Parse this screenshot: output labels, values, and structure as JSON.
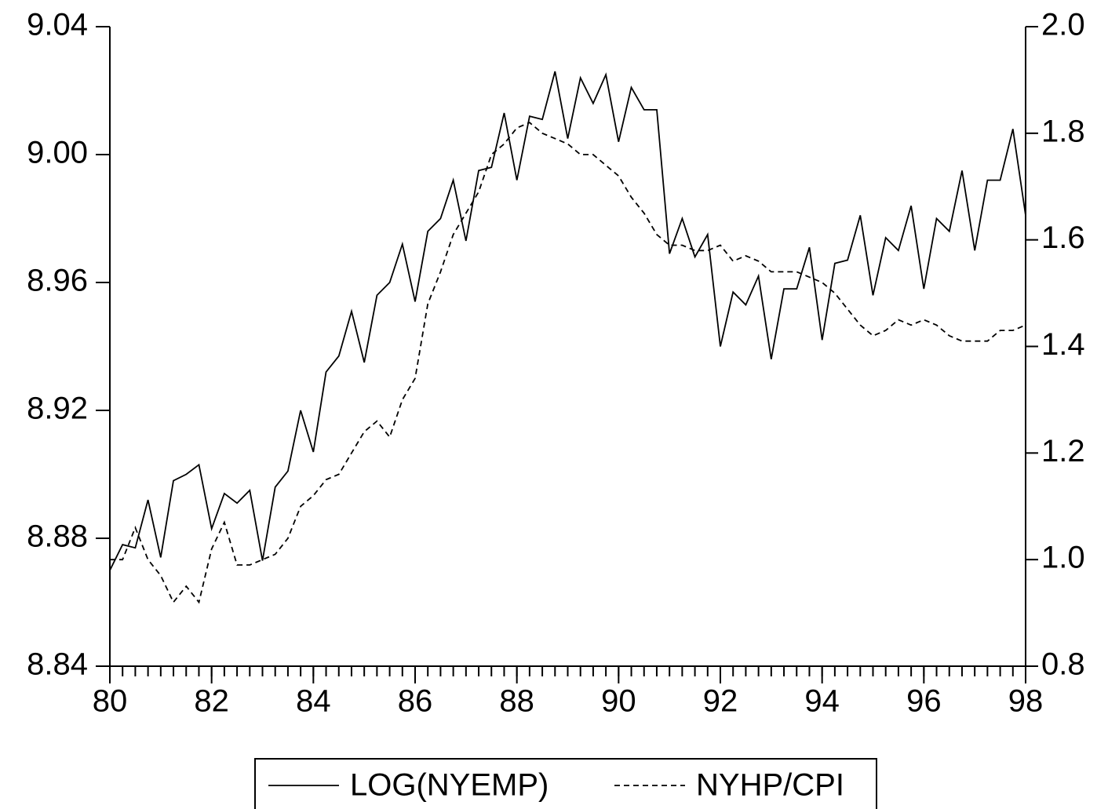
{
  "chart_data": {
    "type": "line",
    "x": [
      80,
      80.25,
      80.5,
      80.75,
      81,
      81.25,
      81.5,
      81.75,
      82,
      82.25,
      82.5,
      82.75,
      83,
      83.25,
      83.5,
      83.75,
      84,
      84.25,
      84.5,
      84.75,
      85,
      85.25,
      85.5,
      85.75,
      86,
      86.25,
      86.5,
      86.75,
      87,
      87.25,
      87.5,
      87.75,
      88,
      88.25,
      88.5,
      88.75,
      89,
      89.25,
      89.5,
      89.75,
      90,
      90.25,
      90.5,
      90.75,
      91,
      91.25,
      91.5,
      91.75,
      92,
      92.25,
      92.5,
      92.75,
      93,
      93.25,
      93.5,
      93.75,
      94,
      94.25,
      94.5,
      94.75,
      95,
      95.25,
      95.5,
      95.75,
      96,
      96.25,
      96.5,
      96.75,
      97,
      97.25,
      97.5,
      97.75,
      98
    ],
    "series": [
      {
        "name": "LOG(NYEMP)",
        "color": "#000000",
        "dash": "solid",
        "values": [
          8.87,
          8.878,
          8.877,
          8.892,
          8.874,
          8.898,
          8.9,
          8.903,
          8.883,
          8.894,
          8.891,
          8.895,
          8.873,
          8.896,
          8.901,
          8.92,
          8.907,
          8.932,
          8.937,
          8.951,
          8.935,
          8.956,
          8.96,
          8.972,
          8.954,
          8.976,
          8.98,
          8.992,
          8.973,
          8.995,
          8.996,
          9.013,
          8.992,
          9.012,
          9.011,
          9.026,
          9.005,
          9.024,
          9.016,
          9.025,
          9.004,
          9.021,
          9.014,
          9.014,
          8.969,
          8.98,
          8.968,
          8.975,
          8.94,
          8.957,
          8.953,
          8.962,
          8.936,
          8.958,
          8.958,
          8.971,
          8.942,
          8.966,
          8.967,
          8.981,
          8.956,
          8.974,
          8.97,
          8.984,
          8.958,
          8.98,
          8.976,
          8.995,
          8.97,
          8.992,
          8.992,
          9.008,
          8.981
        ]
      },
      {
        "name": "NYHP/CPI",
        "color": "#000000",
        "dash": "dashed",
        "axis": "y2",
        "values": [
          1.0,
          1.0,
          1.06,
          1.0,
          0.97,
          0.92,
          0.95,
          0.92,
          1.02,
          1.07,
          0.99,
          0.99,
          1.0,
          1.01,
          1.04,
          1.1,
          1.12,
          1.15,
          1.16,
          1.2,
          1.24,
          1.26,
          1.23,
          1.3,
          1.34,
          1.48,
          1.54,
          1.61,
          1.65,
          1.69,
          1.76,
          1.78,
          1.81,
          1.82,
          1.8,
          1.79,
          1.78,
          1.76,
          1.76,
          1.74,
          1.72,
          1.68,
          1.65,
          1.61,
          1.59,
          1.59,
          1.58,
          1.58,
          1.59,
          1.56,
          1.57,
          1.56,
          1.54,
          1.54,
          1.54,
          1.53,
          1.52,
          1.5,
          1.47,
          1.44,
          1.42,
          1.43,
          1.45,
          1.44,
          1.45,
          1.44,
          1.42,
          1.41,
          1.41,
          1.41,
          1.43,
          1.43,
          1.44
        ]
      }
    ],
    "xlim": [
      80,
      98
    ],
    "xticks": [
      80,
      82,
      84,
      86,
      88,
      90,
      92,
      94,
      96,
      98
    ],
    "ylim": [
      8.84,
      9.04
    ],
    "yticks": [
      8.84,
      8.88,
      8.92,
      8.96,
      {
        "value": 9,
        "label": "9.00"
      },
      9.04
    ],
    "y2lim": [
      0.8,
      2
    ],
    "y2ticks": [
      0.8,
      {
        "value": 1,
        "label": "1.0"
      },
      1.2,
      1.4,
      1.6,
      1.8,
      {
        "value": 2,
        "label": "2.0"
      }
    ],
    "legend": "bottom"
  }
}
